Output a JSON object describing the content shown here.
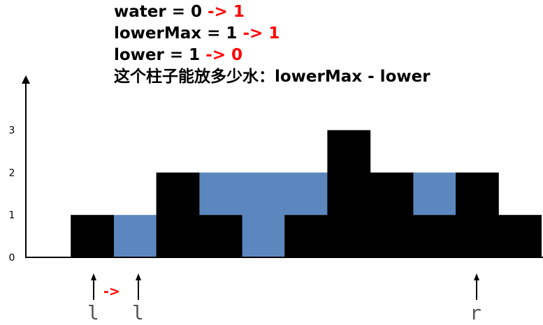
{
  "annotations": {
    "water": {
      "label": "water = 0",
      "change": "-> 1"
    },
    "lowerMax": {
      "label": "lowerMax = 1",
      "change": "-> 1"
    },
    "lower": {
      "label": "lower = 1",
      "change": "-> 0"
    },
    "question": "这个柱子能放多少水：lowerMax - lower"
  },
  "chart_data": {
    "type": "bar",
    "heights": [
      0,
      1,
      0,
      2,
      1,
      0,
      1,
      3,
      2,
      1,
      2,
      1
    ],
    "water": [
      0,
      0,
      1,
      0,
      1,
      2,
      1,
      0,
      0,
      1,
      0,
      0
    ],
    "ytick_labels": [
      "0",
      "1",
      "2",
      "3"
    ],
    "ylim": [
      0,
      3
    ],
    "grid": false
  },
  "pointers": {
    "left_old": "l",
    "left_move": "->",
    "left_new": "l",
    "right": "r"
  },
  "colors": {
    "bar": "#000000",
    "water": "#5b87be",
    "axis": "#000000",
    "highlight": "#ff0000"
  }
}
